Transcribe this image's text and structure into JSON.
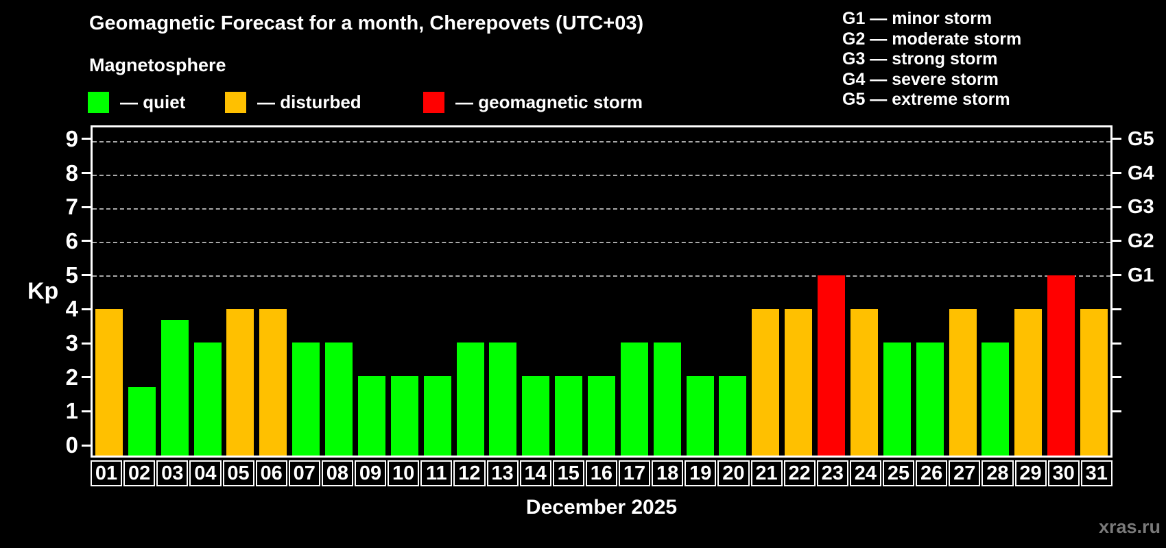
{
  "header": {
    "title": "Geomagnetic Forecast for a month, Cherepovets (UTC+03)",
    "subtitle": "Magnetosphere"
  },
  "legend": [
    {
      "key": "quiet",
      "label": "— quiet",
      "color": "#00ff00"
    },
    {
      "key": "disturbed",
      "label": "— disturbed",
      "color": "#ffc000"
    },
    {
      "key": "storm",
      "label": "— geomagnetic storm",
      "color": "#ff0000"
    }
  ],
  "g_legend": [
    "G1 — minor storm",
    "G2 — moderate storm",
    "G3 — strong storm",
    "G4 — severe storm",
    "G5 — extreme storm"
  ],
  "watermark": "xras.ru",
  "chart_data": {
    "type": "bar",
    "title": "Geomagnetic Forecast for a month, Cherepovets (UTC+03)",
    "xlabel": "December 2025",
    "ylabel": "Kp",
    "ylim": [
      0,
      9
    ],
    "yticks": [
      0,
      1,
      2,
      3,
      4,
      5,
      6,
      7,
      8,
      9
    ],
    "gridlines_at": [
      5,
      6,
      7,
      8,
      9
    ],
    "grid_style": "dashed",
    "legend_position": "top",
    "categories": [
      "01",
      "02",
      "03",
      "04",
      "05",
      "06",
      "07",
      "08",
      "09",
      "10",
      "11",
      "12",
      "13",
      "14",
      "15",
      "16",
      "17",
      "18",
      "19",
      "20",
      "21",
      "22",
      "23",
      "24",
      "25",
      "26",
      "27",
      "28",
      "29",
      "30",
      "31"
    ],
    "values": [
      4,
      1.67,
      3.67,
      3,
      4,
      4,
      3,
      3,
      2,
      2,
      2,
      3,
      3,
      2,
      2,
      2,
      3,
      3,
      2,
      2,
      4,
      4,
      5,
      4,
      3,
      3,
      4,
      3,
      4,
      5,
      4
    ],
    "statuses": [
      "disturbed",
      "quiet",
      "quiet",
      "quiet",
      "disturbed",
      "disturbed",
      "quiet",
      "quiet",
      "quiet",
      "quiet",
      "quiet",
      "quiet",
      "quiet",
      "quiet",
      "quiet",
      "quiet",
      "quiet",
      "quiet",
      "quiet",
      "quiet",
      "disturbed",
      "disturbed",
      "storm",
      "disturbed",
      "quiet",
      "quiet",
      "disturbed",
      "quiet",
      "disturbed",
      "storm",
      "disturbed"
    ],
    "status_colors": {
      "quiet": "#00ff00",
      "disturbed": "#ffc000",
      "storm": "#ff0000"
    },
    "right_axis": [
      {
        "kp": 5,
        "label": "G1"
      },
      {
        "kp": 6,
        "label": "G2"
      },
      {
        "kp": 7,
        "label": "G3"
      },
      {
        "kp": 8,
        "label": "G4"
      },
      {
        "kp": 9,
        "label": "G5"
      }
    ]
  }
}
